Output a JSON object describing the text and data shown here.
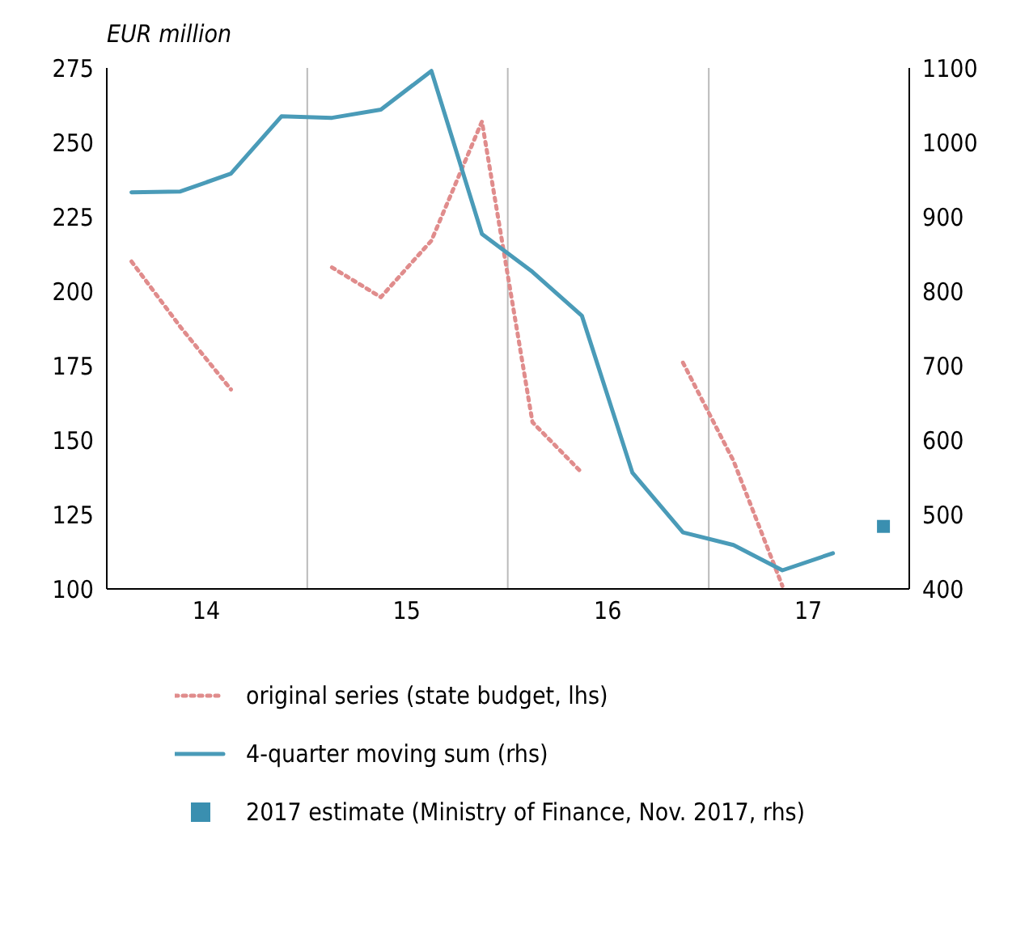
{
  "chart_data": {
    "type": "line",
    "ylabel": "EUR million",
    "xlim": [
      "2014-01-01",
      "2018-01-01"
    ],
    "xticks": [
      {
        "value": "2014-07-01",
        "label": "14"
      },
      {
        "value": "2015-01-01",
        "label": null
      },
      {
        "value": "2015-07-01",
        "label": "15"
      },
      {
        "value": "2016-01-01",
        "label": null
      },
      {
        "value": "2016-07-01",
        "label": "16"
      },
      {
        "value": "2017-01-01",
        "label": null
      },
      {
        "value": "2017-07-01",
        "label": "17"
      }
    ],
    "ylim": [
      100,
      275
    ],
    "yticks": [
      100,
      125,
      150,
      175,
      200,
      225,
      250,
      275
    ],
    "y2lim": [
      400,
      1100
    ],
    "y2ticks": [
      400,
      500,
      600,
      700,
      800,
      900,
      1000,
      1100
    ],
    "grid": "x",
    "legend": "bottom",
    "series": [
      {
        "name": "original series (state budget, lhs)",
        "line_style": "dotted",
        "color": "#e08c8c",
        "x": [
          "2014-02-15",
          "2014-05-15",
          "2014-08-15",
          "2014-11-15",
          "2015-02-15",
          "2015-05-15",
          "2015-08-15",
          "2015-11-15",
          "2016-02-15",
          "2016-05-15",
          "2016-08-15",
          "2016-11-15",
          "2017-02-15",
          "2017-05-15"
        ],
        "values": [
          210,
          188,
          167,
          null,
          208,
          198,
          217,
          257,
          156,
          139,
          null,
          176,
          143,
          101
        ]
      },
      {
        "name": "4-quarter moving sum (rhs)",
        "line_style": "solid",
        "axis": "y2",
        "color": "#4a9bb8",
        "x": [
          "2014-02-15",
          "2014-05-15",
          "2014-08-15",
          "2014-11-15",
          "2015-02-15",
          "2015-05-15",
          "2015-08-15",
          "2015-11-15",
          "2016-02-15",
          "2016-05-15",
          "2016-08-15",
          "2016-11-15",
          "2017-02-15",
          "2017-05-15",
          "2017-08-15"
        ],
        "values": [
          933,
          934,
          958,
          1035,
          1033,
          1044,
          1096,
          877,
          826,
          767,
          556,
          476,
          459,
          425,
          448
        ]
      },
      {
        "name": "2017 estimate (Ministry of Finance, Nov. 2017, rhs)",
        "type": "scatter",
        "marker": "square",
        "axis": "y2",
        "color": "#3a8fb0",
        "x": [
          "2017-11-15"
        ],
        "values": [
          484
        ]
      }
    ]
  }
}
